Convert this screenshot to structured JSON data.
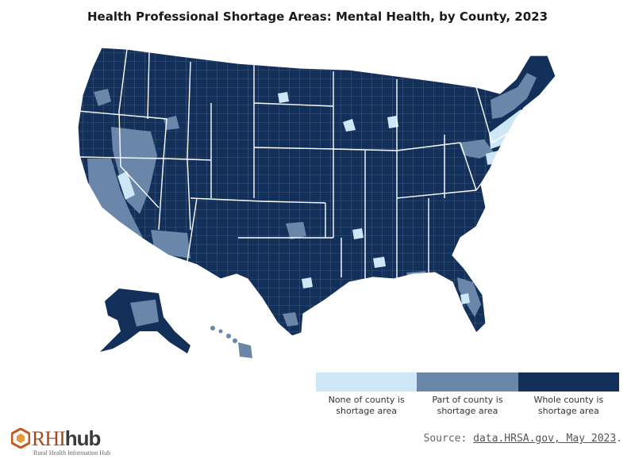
{
  "title": "Health Professional Shortage Areas: Mental Health, by County, 2023",
  "colors": {
    "none": "#cfe6f7",
    "part": "#6a87aa",
    "whole": "#13305a",
    "borders": "#ffffff"
  },
  "legend": {
    "items": [
      {
        "key": "none",
        "label": "None of county is shortage area"
      },
      {
        "key": "part",
        "label": "Part of county is shortage area"
      },
      {
        "key": "whole",
        "label": "Whole county is shortage area"
      }
    ]
  },
  "source": {
    "prefix": "Source: ",
    "link_text": "data.HRSA.gov, May 2023",
    "suffix": "."
  },
  "logo": {
    "rhi": "RHI",
    "hub": "hub",
    "subtitle": "Rural Health Information Hub"
  }
}
